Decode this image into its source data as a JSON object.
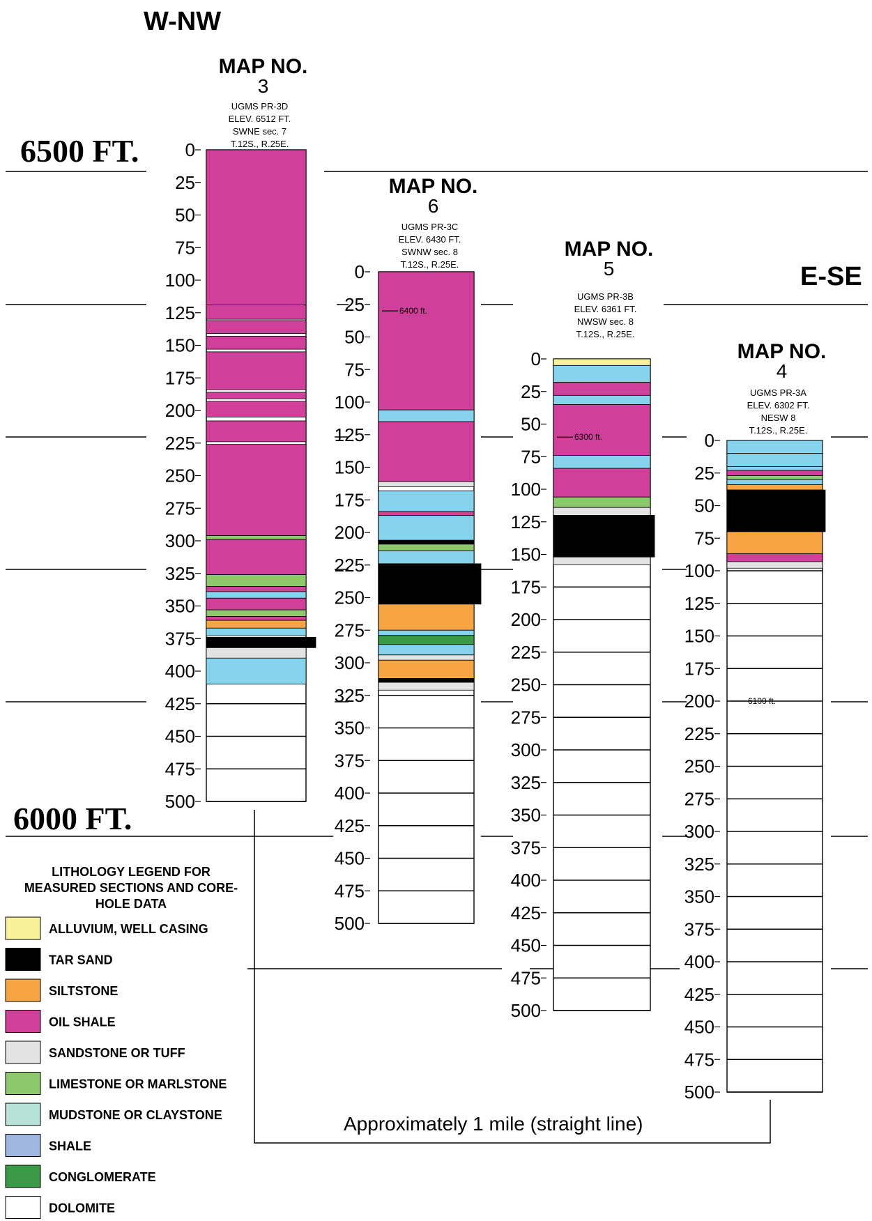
{
  "direction_left": "W-NW",
  "direction_right": "E-SE",
  "elevation_labels": {
    "top": "6500 FT.",
    "bottom": "6000 FT."
  },
  "distance_note": "Approximately 1 mile (straight line)",
  "colors": {
    "alluvium": "#f7f19a",
    "tar_sand": "#000000",
    "siltstone": "#f7a542",
    "oil_shale": "#d0409a",
    "sandstone": "#e3e3e3",
    "limestone": "#8ec86d",
    "mudstone": "#b6e3d6",
    "shale": "#9fb6df",
    "conglomerate": "#3a9a46",
    "dolomite": "#ffffff",
    "core_blue": "#86d3ee"
  },
  "legend": {
    "title": [
      "LITHOLOGY LEGEND FOR",
      "MEASURED SECTIONS AND CORE-",
      "HOLE DATA"
    ],
    "items": [
      {
        "key": "alluvium",
        "label": "ALLUVIUM, WELL CASING"
      },
      {
        "key": "tar_sand",
        "label": "TAR SAND"
      },
      {
        "key": "siltstone",
        "label": "SILTSTONE"
      },
      {
        "key": "oil_shale",
        "label": "OIL SHALE"
      },
      {
        "key": "sandstone",
        "label": "SANDSTONE OR TUFF"
      },
      {
        "key": "limestone",
        "label": "LIMESTONE OR MARLSTONE"
      },
      {
        "key": "mudstone",
        "label": "MUDSTONE OR CLAYSTONE"
      },
      {
        "key": "shale",
        "label": "SHALE"
      },
      {
        "key": "conglomerate",
        "label": "CONGLOMERATE"
      },
      {
        "key": "dolomite",
        "label": "DOLOMITE"
      }
    ]
  },
  "ticks": [
    "0",
    "25",
    "50",
    "75",
    "100",
    "125",
    "150",
    "175",
    "200",
    "225",
    "250",
    "275",
    "300",
    "325",
    "350",
    "375",
    "400",
    "425",
    "450",
    "475",
    "500"
  ],
  "columns": [
    {
      "map_label": "MAP NO.",
      "map_number": "3",
      "info": [
        "UGMS PR-3D",
        "ELEV. 6512 FT.",
        "SWNE sec. 7",
        "T.12S., R.25E."
      ],
      "elev_marker": "",
      "depth_to": 410,
      "layers": [
        {
          "from": 0,
          "to": 119,
          "lith": "oil_shale"
        },
        {
          "from": 119,
          "to": 130,
          "lith": "oil_shale"
        },
        {
          "from": 131,
          "to": 141,
          "lith": "oil_shale"
        },
        {
          "from": 143,
          "to": 153,
          "lith": "oil_shale"
        },
        {
          "from": 155,
          "to": 184,
          "lith": "oil_shale"
        },
        {
          "from": 186,
          "to": 191,
          "lith": "oil_shale"
        },
        {
          "from": 193,
          "to": 205,
          "lith": "oil_shale"
        },
        {
          "from": 208,
          "to": 224,
          "lith": "oil_shale"
        },
        {
          "from": 226,
          "to": 296,
          "lith": "oil_shale"
        },
        {
          "from": 296,
          "to": 299,
          "lith": "limestone"
        },
        {
          "from": 299,
          "to": 326,
          "lith": "oil_shale"
        },
        {
          "from": 326,
          "to": 335,
          "lith": "limestone"
        },
        {
          "from": 335,
          "to": 339,
          "lith": "oil_shale"
        },
        {
          "from": 339,
          "to": 344,
          "lith": "core_blue"
        },
        {
          "from": 344,
          "to": 353,
          "lith": "oil_shale"
        },
        {
          "from": 353,
          "to": 358,
          "lith": "limestone"
        },
        {
          "from": 358,
          "to": 361,
          "lith": "oil_shale"
        },
        {
          "from": 361,
          "to": 367,
          "lith": "siltstone"
        },
        {
          "from": 367,
          "to": 373,
          "lith": "core_blue"
        },
        {
          "from": 374,
          "to": 382,
          "lith": "tar_sand",
          "extend": 14
        },
        {
          "from": 382,
          "to": 390,
          "lith": "sandstone"
        },
        {
          "from": 390,
          "to": 410,
          "lith": "core_blue"
        }
      ]
    },
    {
      "map_label": "MAP NO.",
      "map_number": "6",
      "info": [
        "UGMS PR-3C",
        "ELEV. 6430 FT.",
        "SWNW sec. 8",
        "T.12S., R.25E."
      ],
      "elev_marker": "6400 ft.",
      "elev_marker_depth": 30,
      "depth_to": 322,
      "layers": [
        {
          "from": 0,
          "to": 106,
          "lith": "oil_shale"
        },
        {
          "from": 106,
          "to": 115,
          "lith": "core_blue"
        },
        {
          "from": 115,
          "to": 161,
          "lith": "oil_shale"
        },
        {
          "from": 161,
          "to": 165,
          "lith": "sandstone"
        },
        {
          "from": 168,
          "to": 184,
          "lith": "core_blue"
        },
        {
          "from": 184,
          "to": 187,
          "lith": "oil_shale"
        },
        {
          "from": 187,
          "to": 206,
          "lith": "core_blue"
        },
        {
          "from": 206,
          "to": 209,
          "lith": "tar_sand"
        },
        {
          "from": 209,
          "to": 214,
          "lith": "limestone"
        },
        {
          "from": 214,
          "to": 224,
          "lith": "core_blue"
        },
        {
          "from": 224,
          "to": 255,
          "lith": "tar_sand",
          "extend": 10
        },
        {
          "from": 255,
          "to": 275,
          "lith": "siltstone"
        },
        {
          "from": 275,
          "to": 279,
          "lith": "core_blue"
        },
        {
          "from": 279,
          "to": 286,
          "lith": "conglomerate"
        },
        {
          "from": 286,
          "to": 294,
          "lith": "core_blue"
        },
        {
          "from": 294,
          "to": 298,
          "lith": "sandstone"
        },
        {
          "from": 298,
          "to": 312,
          "lith": "siltstone"
        },
        {
          "from": 312,
          "to": 315,
          "lith": "tar_sand"
        },
        {
          "from": 315,
          "to": 321,
          "lith": "sandstone"
        }
      ]
    },
    {
      "map_label": "MAP NO.",
      "map_number": "5",
      "info": [
        "UGMS PR-3B",
        "ELEV. 6361 FT.",
        "NWSW sec. 8",
        "T.12S., R.25E."
      ],
      "elev_marker": "6300 ft.",
      "elev_marker_depth": 60,
      "depth_to": 158,
      "layers": [
        {
          "from": 0,
          "to": 5,
          "lith": "alluvium"
        },
        {
          "from": 5,
          "to": 18,
          "lith": "core_blue"
        },
        {
          "from": 18,
          "to": 28,
          "lith": "oil_shale"
        },
        {
          "from": 28,
          "to": 35,
          "lith": "core_blue"
        },
        {
          "from": 35,
          "to": 74,
          "lith": "oil_shale"
        },
        {
          "from": 74,
          "to": 84,
          "lith": "core_blue"
        },
        {
          "from": 84,
          "to": 106,
          "lith": "oil_shale"
        },
        {
          "from": 106,
          "to": 114,
          "lith": "limestone"
        },
        {
          "from": 114,
          "to": 120,
          "lith": "sandstone"
        },
        {
          "from": 120,
          "to": 152,
          "lith": "tar_sand",
          "extend": 6
        },
        {
          "from": 152,
          "to": 158,
          "lith": "sandstone"
        }
      ]
    },
    {
      "map_label": "MAP NO.",
      "map_number": "4",
      "info": [
        "UGMS PR-3A",
        "ELEV. 6302 FT.",
        "NESW 8",
        "T.12S., R.25E."
      ],
      "elev_marker": "6100 ft.",
      "elev_marker_depth": 200,
      "depth_to": 98,
      "layers": [
        {
          "from": 0,
          "to": 10,
          "lith": "core_blue"
        },
        {
          "from": 10,
          "to": 20,
          "lith": "core_blue"
        },
        {
          "from": 20,
          "to": 23,
          "lith": "core_blue"
        },
        {
          "from": 23,
          "to": 27,
          "lith": "oil_shale"
        },
        {
          "from": 27,
          "to": 30,
          "lith": "limestone"
        },
        {
          "from": 30,
          "to": 34,
          "lith": "core_blue"
        },
        {
          "from": 34,
          "to": 38,
          "lith": "siltstone"
        },
        {
          "from": 38,
          "to": 70,
          "lith": "tar_sand",
          "extend": 4
        },
        {
          "from": 70,
          "to": 87,
          "lith": "siltstone"
        },
        {
          "from": 87,
          "to": 93,
          "lith": "oil_shale"
        },
        {
          "from": 93,
          "to": 98,
          "lith": "sandstone"
        }
      ]
    }
  ]
}
